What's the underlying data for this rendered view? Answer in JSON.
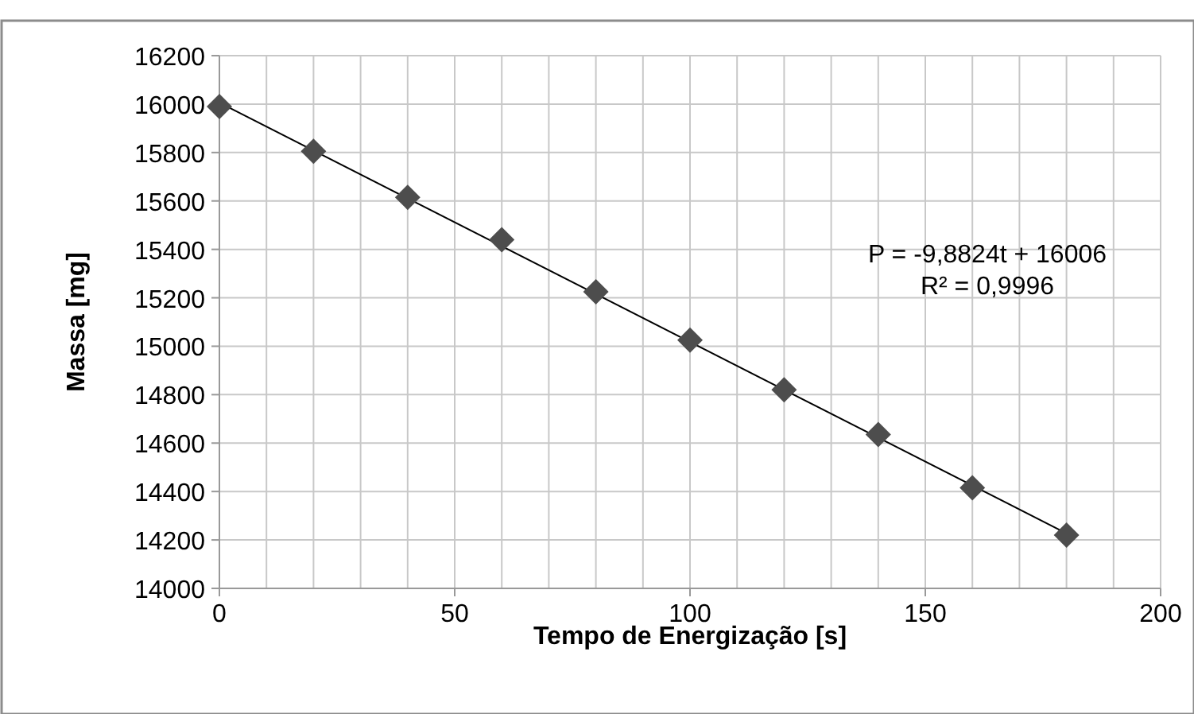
{
  "chart_data": {
    "type": "scatter",
    "xlabel": "Tempo de Energização [s]",
    "ylabel": "Massa [mg]",
    "xlim": [
      0,
      200
    ],
    "ylim": [
      14000,
      16200
    ],
    "xticks": [
      0,
      {
        "value": 10,
        "label": null
      },
      {
        "value": 20,
        "label": null
      },
      {
        "value": 30,
        "label": null
      },
      {
        "value": 40,
        "label": null
      },
      50,
      {
        "value": 60,
        "label": null
      },
      {
        "value": 70,
        "label": null
      },
      {
        "value": 80,
        "label": null
      },
      {
        "value": 90,
        "label": null
      },
      100,
      {
        "value": 110,
        "label": null
      },
      {
        "value": 120,
        "label": null
      },
      {
        "value": 130,
        "label": null
      },
      {
        "value": 140,
        "label": null
      },
      150,
      {
        "value": 160,
        "label": null
      },
      {
        "value": 170,
        "label": null
      },
      {
        "value": 180,
        "label": null
      },
      {
        "value": 190,
        "label": null
      },
      200
    ],
    "yticks": [
      14000,
      14200,
      14400,
      14600,
      14800,
      15000,
      15200,
      15400,
      15600,
      15800,
      16000,
      16200
    ],
    "grid": true,
    "series": [
      {
        "marker": "diamond",
        "color": "#4d4d4d",
        "x": [
          0,
          20,
          40,
          60,
          80,
          100,
          120,
          140,
          160,
          180
        ],
        "values": [
          15990,
          15805,
          15615,
          15440,
          15225,
          15025,
          14820,
          14635,
          14415,
          14220
        ]
      },
      {
        "type": "line",
        "color": "#000000",
        "x": [
          0,
          180
        ],
        "values": [
          16006,
          14227
        ]
      }
    ],
    "annotations": [
      "P = -9,8824t + 16006",
      "R² = 0,9996"
    ]
  }
}
